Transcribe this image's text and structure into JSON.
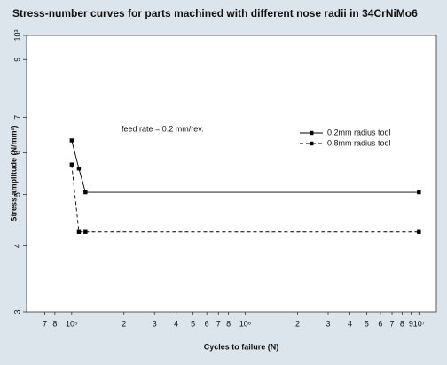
{
  "chart_data": {
    "type": "line",
    "title": "Stress-number curves for parts machined with different nose radii in 34CrNiMo6",
    "x_label": "Cycles to failure (N)",
    "y_label": "Stress amplitude (N/mm²)",
    "annotation": "feed rate = 0.2 mm/rev.",
    "log_x": true,
    "log_y": true,
    "xlim": [
      55000,
      12600000
    ],
    "ylim": [
      300,
      1000
    ],
    "xticks": [
      {
        "value": 70000,
        "label": "7"
      },
      {
        "value": 80000,
        "label": "8"
      },
      {
        "value": 100000,
        "label": "10⁵"
      },
      {
        "value": 200000,
        "label": "2"
      },
      {
        "value": 300000,
        "label": "3"
      },
      {
        "value": 400000,
        "label": "4"
      },
      {
        "value": 500000,
        "label": "5"
      },
      {
        "value": 600000,
        "label": "6"
      },
      {
        "value": 700000,
        "label": "7"
      },
      {
        "value": 800000,
        "label": "8"
      },
      {
        "value": 1000000,
        "label": "10⁶"
      },
      {
        "value": 2000000,
        "label": "2"
      },
      {
        "value": 3000000,
        "label": "3"
      },
      {
        "value": 4000000,
        "label": "4"
      },
      {
        "value": 5000000,
        "label": "5"
      },
      {
        "value": 6000000,
        "label": "6"
      },
      {
        "value": 7000000,
        "label": "7"
      },
      {
        "value": 8000000,
        "label": "8"
      },
      {
        "value": 9000000,
        "label": "9"
      },
      {
        "value": 10000000,
        "label": "10⁷"
      }
    ],
    "yticks": [
      {
        "value": 300,
        "label": "3"
      },
      {
        "value": 400,
        "label": "4"
      },
      {
        "value": 500,
        "label": "5"
      },
      {
        "value": 600,
        "label": "6"
      },
      {
        "value": 700,
        "label": "7"
      },
      {
        "value": 900,
        "label": "9"
      },
      {
        "value": 1000,
        "label": "10³"
      }
    ],
    "x": [
      100000,
      110000,
      120000,
      10000000
    ],
    "series": [
      {
        "name": "0.2mm radius tool",
        "color": "#000000",
        "dash": "solid",
        "values": [
          633,
          560,
          505,
          505
        ]
      },
      {
        "name": "0.8mm radius tool",
        "color": "#000000",
        "dash": "dashed",
        "values": [
          570,
          425,
          425,
          425
        ]
      }
    ]
  }
}
